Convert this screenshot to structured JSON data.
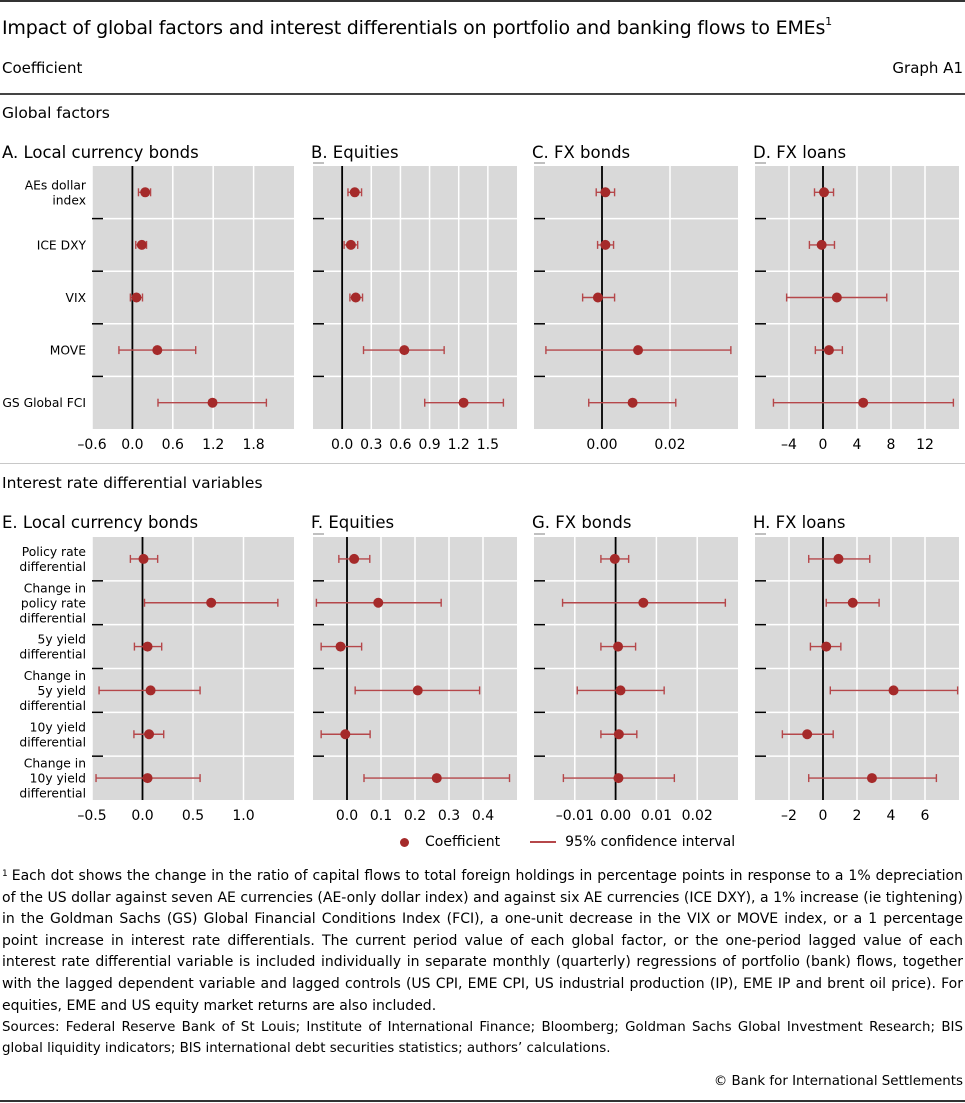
{
  "header": {
    "title": "Impact of global factors and interest differentials on portfolio and banking flows to EMEs",
    "title_footnote_marker": "1",
    "subtitle": "Coefficient",
    "graph_id": "Graph A1"
  },
  "sections": {
    "global": "Global factors",
    "interest": "Interest rate differential variables"
  },
  "legend": {
    "coefficient": "Coefficient",
    "ci": "95% confidence interval"
  },
  "colors": {
    "dot": "#a52a2a",
    "ci_line": "#b5474a",
    "plot_bg": "#d9d9d9",
    "grid": "#ffffff",
    "zero_line": "#000000"
  },
  "footnote": {
    "marker": "1",
    "text": "Each dot shows the change in the ratio of capital flows to total foreign holdings in percentage points in response to a 1% depreciation of the US dollar against seven AE currencies (AE-only dollar index) and against six AE currencies (ICE DXY), a 1% increase (ie tightening) in the Goldman Sachs (GS) Global Financial Conditions Index (FCI), a one-unit decrease in the VIX or MOVE index, or a 1 percentage point increase in interest rate differentials. The current period value of each global factor, or the one-period lagged value of each interest rate differential variable is included individually in separate monthly (quarterly) regressions of portfolio (bank) flows, together with the lagged dependent variable and lagged controls (US CPI, EME CPI, US industrial production (IP), EME IP and brent oil price). For equities, EME and US equity market returns are also included."
  },
  "sources": "Sources: Federal Reserve Bank of St Louis; Institute of International Finance; Bloomberg; Goldman Sachs Global Investment Research; BIS global liquidity indicators; BIS international debt securities statistics; authors’ calculations.",
  "copyright": "© Bank for International Settlements",
  "chart_data": [
    {
      "type": "scatter",
      "subtype": "coefficient-plot",
      "title": "A. Local currency bonds",
      "group": "Global factors",
      "categories": [
        "AEs dollar index",
        "ICE DXY",
        "VIX",
        "MOVE",
        "GS Global FCI"
      ],
      "category_lines": [
        [
          "AEs dollar",
          "index"
        ],
        [
          "ICE DXY"
        ],
        [
          "VIX"
        ],
        [
          "MOVE"
        ],
        [
          "GS Global FCI"
        ]
      ],
      "coefficient": [
        0.19,
        0.14,
        0.06,
        0.37,
        1.19
      ],
      "ci_low": [
        0.09,
        0.05,
        -0.03,
        -0.2,
        0.38
      ],
      "ci_high": [
        0.27,
        0.21,
        0.15,
        0.94,
        1.99
      ],
      "xlim": [
        -0.6,
        2.4
      ],
      "xticks": [
        -0.6,
        0.0,
        0.6,
        1.2,
        1.8
      ],
      "xtick_labels": [
        "–0.6",
        "0.0",
        "0.6",
        "1.2",
        "1.8"
      ],
      "grid": true
    },
    {
      "type": "scatter",
      "subtype": "coefficient-plot",
      "title": "B. Equities",
      "group": "Global factors",
      "categories": [
        "AEs dollar index",
        "ICE DXY",
        "VIX",
        "MOVE",
        "GS Global FCI"
      ],
      "coefficient": [
        0.13,
        0.09,
        0.14,
        0.64,
        1.25
      ],
      "ci_low": [
        0.06,
        0.02,
        0.08,
        0.22,
        0.85
      ],
      "ci_high": [
        0.2,
        0.16,
        0.21,
        1.05,
        1.66
      ],
      "xlim": [
        -0.3,
        1.8
      ],
      "xticks": [
        0.0,
        0.3,
        0.6,
        0.9,
        1.2,
        1.5
      ],
      "xtick_labels": [
        "0.0",
        "0.3",
        "0.6",
        "0.9",
        "1.2",
        "1.5"
      ],
      "grid": true
    },
    {
      "type": "scatter",
      "subtype": "coefficient-plot",
      "title": "C. FX bonds",
      "group": "Global factors",
      "categories": [
        "AEs dollar index",
        "ICE DXY",
        "VIX",
        "MOVE",
        "GS Global FCI"
      ],
      "coefficient": [
        0.001,
        0.001,
        -0.0012,
        0.0106,
        0.009
      ],
      "ci_low": [
        -0.0017,
        -0.0013,
        -0.0057,
        -0.0165,
        -0.0039
      ],
      "ci_high": [
        0.0037,
        0.0034,
        0.0037,
        0.0379,
        0.0217
      ],
      "xlim": [
        -0.02,
        0.04
      ],
      "xticks": [
        0.0,
        0.02
      ],
      "xtick_labels": [
        "0.00",
        "0.02"
      ],
      "grid": true
    },
    {
      "type": "scatter",
      "subtype": "coefficient-plot",
      "title": "D. FX loans",
      "group": "Global factors",
      "categories": [
        "AEs dollar index",
        "ICE DXY",
        "VIX",
        "MOVE",
        "GS Global FCI"
      ],
      "coefficient": [
        0.12,
        -0.16,
        1.63,
        0.7,
        4.73
      ],
      "ci_low": [
        -1.0,
        -1.6,
        -4.28,
        -0.9,
        -5.83
      ],
      "ci_high": [
        1.24,
        1.35,
        7.5,
        2.28,
        15.34
      ],
      "xlim": [
        -8,
        16
      ],
      "xticks": [
        -4,
        0,
        4,
        8,
        12
      ],
      "xtick_labels": [
        "–4",
        "0",
        "4",
        "8",
        "12"
      ],
      "grid": true
    },
    {
      "type": "scatter",
      "subtype": "coefficient-plot",
      "title": "E. Local currency bonds",
      "group": "Interest rate differential variables",
      "categories": [
        "Policy rate differential",
        "Change in policy rate differential",
        "5y yield differential",
        "Change in 5y yield differential",
        "10y yield differential",
        "Change in 10y yield differential"
      ],
      "category_lines": [
        [
          "Policy rate",
          "differential"
        ],
        [
          "Change in",
          "policy rate",
          "differential"
        ],
        [
          "5y yield",
          "differential"
        ],
        [
          "Change in",
          "5y yield",
          "differential"
        ],
        [
          "10y yield",
          "differential"
        ],
        [
          "Change in",
          "10y yield",
          "differential"
        ]
      ],
      "coefficient": [
        0.01,
        0.68,
        0.05,
        0.08,
        0.065,
        0.05
      ],
      "ci_low": [
        -0.12,
        0.02,
        -0.08,
        -0.43,
        -0.085,
        -0.46
      ],
      "ci_high": [
        0.15,
        1.34,
        0.19,
        0.57,
        0.21,
        0.57
      ],
      "xlim": [
        -0.5,
        1.5
      ],
      "xticks": [
        -0.5,
        0.0,
        0.5,
        1.0
      ],
      "xtick_labels": [
        "–0.5",
        "0.0",
        "0.5",
        "1.0"
      ],
      "grid": true
    },
    {
      "type": "scatter",
      "subtype": "coefficient-plot",
      "title": "F. Equities",
      "group": "Interest rate differential variables",
      "categories": [
        "Policy rate differential",
        "Change in policy rate differential",
        "5y yield differential",
        "Change in 5y yield differential",
        "10y yield differential",
        "Change in 10y yield differential"
      ],
      "coefficient": [
        0.021,
        0.092,
        -0.019,
        0.208,
        -0.005,
        0.264
      ],
      "ci_low": [
        -0.024,
        -0.09,
        -0.076,
        0.024,
        -0.076,
        0.05
      ],
      "ci_high": [
        0.067,
        0.277,
        0.043,
        0.39,
        0.068,
        0.478
      ],
      "xlim": [
        -0.1,
        0.5
      ],
      "xticks": [
        0.0,
        0.1,
        0.2,
        0.3,
        0.4
      ],
      "xtick_labels": [
        "0.0",
        "0.1",
        "0.2",
        "0.3",
        "0.4"
      ],
      "grid": true
    },
    {
      "type": "scatter",
      "subtype": "coefficient-plot",
      "title": "G. FX bonds",
      "group": "Interest rate differential variables",
      "categories": [
        "Policy rate differential",
        "Change in policy rate differential",
        "5y yield differential",
        "Change in 5y yield differential",
        "10y yield differential",
        "Change in 10y yield differential"
      ],
      "coefficient": [
        -0.0002,
        0.0068,
        0.0006,
        0.0012,
        0.0008,
        0.0007
      ],
      "ci_low": [
        -0.0036,
        -0.013,
        -0.0036,
        -0.0094,
        -0.0036,
        -0.0128
      ],
      "ci_high": [
        0.0032,
        0.0269,
        0.0049,
        0.0119,
        0.0052,
        0.0144
      ],
      "xlim": [
        -0.02,
        0.03
      ],
      "xticks": [
        -0.01,
        0.0,
        0.01,
        0.02
      ],
      "xtick_labels": [
        "–0.01",
        "0.00",
        "0.01",
        "0.02"
      ],
      "grid": true
    },
    {
      "type": "scatter",
      "subtype": "coefficient-plot",
      "title": "H. FX loans",
      "group": "Interest rate differential variables",
      "categories": [
        "Policy rate differential",
        "Change in policy rate differential",
        "5y yield differential",
        "Change in 5y yield differential",
        "10y yield differential",
        "Change in 10y yield differential"
      ],
      "coefficient": [
        0.91,
        1.75,
        0.19,
        4.15,
        -0.93,
        2.88
      ],
      "ci_low": [
        -0.84,
        0.19,
        -0.74,
        0.43,
        -2.39,
        -0.84
      ],
      "ci_high": [
        2.75,
        3.3,
        1.05,
        7.92,
        0.6,
        6.67
      ],
      "xlim": [
        -4,
        8
      ],
      "xticks": [
        -2,
        0,
        2,
        4,
        6
      ],
      "xtick_labels": [
        "–2",
        "0",
        "2",
        "4",
        "6"
      ],
      "grid": true
    }
  ]
}
